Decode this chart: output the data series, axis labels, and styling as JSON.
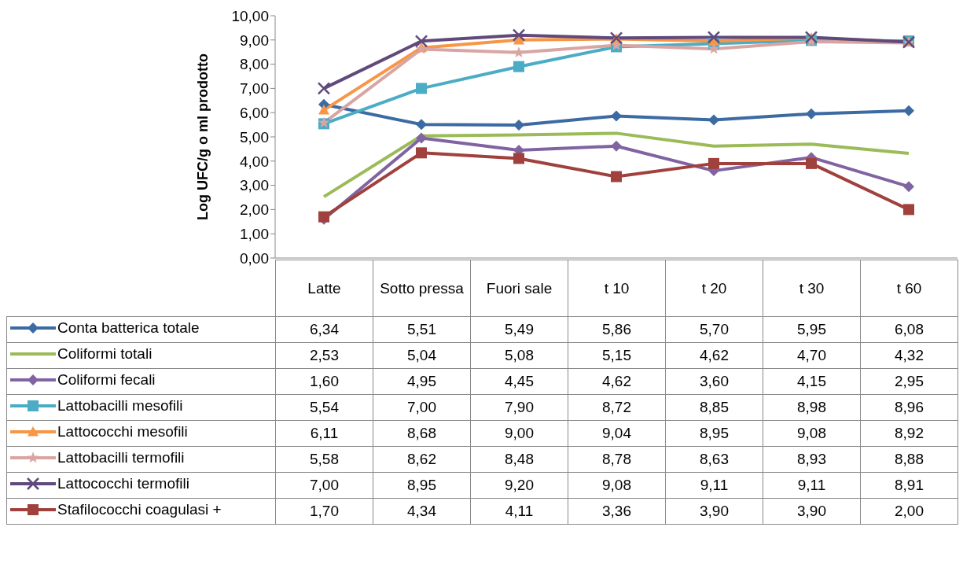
{
  "chart_data": {
    "type": "line",
    "ylabel": "Log UFC/g o ml prodotto",
    "categories": [
      "Latte",
      "Sotto pressa",
      "Fuori sale",
      "t 10",
      "t 20",
      "t 30",
      "t 60"
    ],
    "ylim": [
      0,
      10
    ],
    "yticks": [
      {
        "value": 0,
        "label": "0,00"
      },
      {
        "value": 1,
        "label": "1,00"
      },
      {
        "value": 2,
        "label": "2,00"
      },
      {
        "value": 3,
        "label": "3,00"
      },
      {
        "value": 4,
        "label": "4,00"
      },
      {
        "value": 5,
        "label": "5,00"
      },
      {
        "value": 6,
        "label": "6,00"
      },
      {
        "value": 7,
        "label": "7,00"
      },
      {
        "value": 8,
        "label": "8,00"
      },
      {
        "value": 9,
        "label": "9,00"
      },
      {
        "value": 10,
        "label": "10,00"
      }
    ],
    "grid": false,
    "legend": "bottom",
    "series": [
      {
        "name": "Conta batterica totale",
        "color": "#3c6aa3",
        "marker": "diamond",
        "values": [
          6.34,
          5.51,
          5.49,
          5.86,
          5.7,
          5.95,
          6.08
        ],
        "value_labels": [
          "6,34",
          "5,51",
          "5,49",
          "5,86",
          "5,70",
          "5,95",
          "6,08"
        ]
      },
      {
        "name": "Coliformi totali",
        "color": "#9bbb59",
        "marker": "none",
        "values": [
          2.53,
          5.04,
          5.08,
          5.15,
          4.62,
          4.7,
          4.32
        ],
        "value_labels": [
          "2,53",
          "5,04",
          "5,08",
          "5,15",
          "4,62",
          "4,70",
          "4,32"
        ]
      },
      {
        "name": "Coliformi fecali",
        "color": "#8064a2",
        "marker": "diamond",
        "values": [
          1.6,
          4.95,
          4.45,
          4.62,
          3.6,
          4.15,
          2.95
        ],
        "value_labels": [
          "1,60",
          "4,95",
          "4,45",
          "4,62",
          "3,60",
          "4,15",
          "2,95"
        ]
      },
      {
        "name": "Lattobacilli mesofili",
        "color": "#4bacc6",
        "marker": "square",
        "values": [
          5.54,
          7.0,
          7.9,
          8.72,
          8.85,
          8.98,
          8.96
        ],
        "value_labels": [
          "5,54",
          "7,00",
          "7,90",
          "8,72",
          "8,85",
          "8,98",
          "8,96"
        ]
      },
      {
        "name": "Lattococchi mesofili",
        "color": "#f79646",
        "marker": "triangle",
        "values": [
          6.11,
          8.68,
          9.0,
          9.04,
          8.95,
          9.08,
          8.92
        ],
        "value_labels": [
          "6,11",
          "8,68",
          "9,00",
          "9,04",
          "8,95",
          "9,08",
          "8,92"
        ]
      },
      {
        "name": "Lattobacilli termofili",
        "color": "#d9a5a3",
        "marker": "star",
        "values": [
          5.58,
          8.62,
          8.48,
          8.78,
          8.63,
          8.93,
          8.88
        ],
        "value_labels": [
          "5,58",
          "8,62",
          "8,48",
          "8,78",
          "8,63",
          "8,93",
          "8,88"
        ]
      },
      {
        "name": "Lattococchi termofili",
        "color": "#604a7b",
        "marker": "cross",
        "values": [
          7.0,
          8.95,
          9.2,
          9.08,
          9.11,
          9.11,
          8.91
        ],
        "value_labels": [
          "7,00",
          "8,95",
          "9,20",
          "9,08",
          "9,11",
          "9,11",
          "8,91"
        ]
      },
      {
        "name": "Stafilococchi coagulasi +",
        "color": "#a0413d",
        "marker": "square",
        "values": [
          1.7,
          4.34,
          4.11,
          3.36,
          3.9,
          3.9,
          2.0
        ],
        "value_labels": [
          "1,70",
          "4,34",
          "4,11",
          "3,36",
          "3,90",
          "3,90",
          "2,00"
        ]
      }
    ]
  }
}
